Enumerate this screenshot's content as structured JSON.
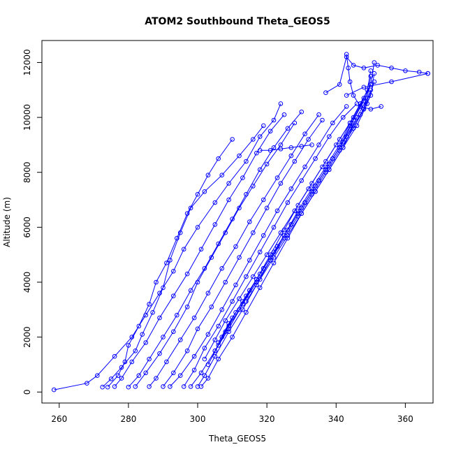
{
  "chart_data": {
    "type": "line",
    "title": "ATOM2 Southbound Theta_GEOS5",
    "xlabel": "Theta_GEOS5",
    "ylabel": "Altitude (m)",
    "xlim": [
      255,
      368
    ],
    "ylim": [
      -400,
      12800
    ],
    "xticks": [
      260,
      280,
      300,
      320,
      340,
      360
    ],
    "yticks": [
      0,
      2000,
      4000,
      6000,
      8000,
      10000,
      12000
    ],
    "grid": false,
    "line_color": "#0000ff",
    "marker": "open-circle",
    "series": [
      {
        "points": [
          [
            258.5,
            80
          ],
          [
            268,
            320
          ],
          [
            271,
            600
          ],
          [
            276,
            1300
          ],
          [
            281,
            2000
          ],
          [
            285,
            2800
          ],
          [
            289,
            3600
          ],
          [
            293,
            4400
          ],
          [
            296,
            5200
          ],
          [
            300,
            6000
          ],
          [
            305,
            6900
          ],
          [
            309,
            7600
          ],
          [
            314,
            8400
          ],
          [
            318,
            9300
          ],
          [
            322,
            9900
          ],
          [
            324,
            10500
          ]
        ]
      },
      {
        "points": [
          [
            272.5,
            180
          ],
          [
            275,
            480
          ],
          [
            278,
            900
          ],
          [
            282,
            1500
          ],
          [
            284,
            2100
          ],
          [
            287,
            2900
          ],
          [
            290,
            3800
          ],
          [
            292,
            4800
          ],
          [
            295,
            5800
          ],
          [
            298,
            6700
          ],
          [
            302,
            7300
          ],
          [
            307,
            7900
          ],
          [
            312,
            8600
          ],
          [
            316,
            9200
          ],
          [
            319,
            9700
          ]
        ]
      },
      {
        "points": [
          [
            274,
            180
          ],
          [
            277,
            600
          ],
          [
            279,
            1100
          ],
          [
            280,
            1700
          ],
          [
            283,
            2400
          ],
          [
            286,
            3200
          ],
          [
            288,
            4000
          ],
          [
            291,
            4700
          ],
          [
            294,
            5600
          ],
          [
            297,
            6500
          ],
          [
            300,
            7200
          ],
          [
            303,
            7900
          ],
          [
            306,
            8500
          ],
          [
            310,
            9200
          ]
        ]
      },
      {
        "points": [
          [
            276,
            200
          ],
          [
            278,
            500
          ],
          [
            281,
            1100
          ],
          [
            285,
            1800
          ],
          [
            289,
            2700
          ],
          [
            293,
            3500
          ],
          [
            297,
            4300
          ],
          [
            301,
            5200
          ],
          [
            305,
            6100
          ],
          [
            309,
            7000
          ],
          [
            313,
            7800
          ],
          [
            317,
            8700
          ],
          [
            321,
            9500
          ],
          [
            325,
            10100
          ]
        ]
      },
      {
        "points": [
          [
            280,
            180
          ],
          [
            283,
            600
          ],
          [
            286,
            1200
          ],
          [
            290,
            2000
          ],
          [
            294,
            2800
          ],
          [
            298,
            3700
          ],
          [
            302,
            4500
          ],
          [
            306,
            5400
          ],
          [
            310,
            6300
          ],
          [
            314,
            7200
          ],
          [
            318,
            8100
          ],
          [
            322,
            8900
          ],
          [
            326,
            9600
          ],
          [
            330,
            10200
          ]
        ]
      },
      {
        "points": [
          [
            282,
            200
          ],
          [
            285,
            700
          ],
          [
            289,
            1400
          ],
          [
            293,
            2200
          ],
          [
            297,
            3100
          ],
          [
            300,
            4000
          ],
          [
            304,
            4900
          ],
          [
            308,
            5800
          ],
          [
            312,
            6700
          ],
          [
            316,
            7500
          ],
          [
            320,
            8300
          ],
          [
            324,
            9000
          ],
          [
            328,
            9800
          ]
        ]
      },
      {
        "points": [
          [
            286,
            200
          ],
          [
            288,
            500
          ],
          [
            291,
            1100
          ],
          [
            295,
            1900
          ],
          [
            299,
            2700
          ],
          [
            303,
            3600
          ],
          [
            307,
            4500
          ],
          [
            311,
            5300
          ],
          [
            315,
            6200
          ],
          [
            319,
            7000
          ],
          [
            323,
            7800
          ],
          [
            327,
            8600
          ],
          [
            331,
            9400
          ],
          [
            335,
            10100
          ]
        ]
      },
      {
        "points": [
          [
            290,
            200
          ],
          [
            293,
            700
          ],
          [
            297,
            1500
          ],
          [
            300,
            2300
          ],
          [
            304,
            3100
          ],
          [
            308,
            4000
          ],
          [
            312,
            4900
          ],
          [
            316,
            5800
          ],
          [
            320,
            6700
          ],
          [
            324,
            7600
          ],
          [
            328,
            8400
          ],
          [
            332,
            9200
          ],
          [
            336,
            9900
          ]
        ]
      },
      {
        "points": [
          [
            292,
            200
          ],
          [
            295,
            600
          ],
          [
            299,
            1300
          ],
          [
            303,
            2100
          ],
          [
            307,
            3000
          ],
          [
            311,
            3900
          ],
          [
            315,
            4800
          ],
          [
            319,
            5700
          ],
          [
            323,
            6600
          ],
          [
            327,
            7400
          ],
          [
            331,
            8200
          ],
          [
            335,
            9000
          ],
          [
            339,
            9800
          ],
          [
            343,
            10400
          ]
        ]
      },
      {
        "points": [
          [
            296,
            200
          ],
          [
            299,
            800
          ],
          [
            302,
            1600
          ],
          [
            306,
            2400
          ],
          [
            310,
            3300
          ],
          [
            314,
            4200
          ],
          [
            318,
            5100
          ],
          [
            322,
            6000
          ],
          [
            326,
            6900
          ],
          [
            330,
            7700
          ],
          [
            334,
            8500
          ],
          [
            338,
            9300
          ],
          [
            342,
            10000
          ],
          [
            346,
            10500
          ]
        ]
      },
      {
        "points": [
          [
            298,
            200
          ],
          [
            301,
            700
          ],
          [
            305,
            1500
          ],
          [
            309,
            2300
          ],
          [
            313,
            3200
          ],
          [
            317,
            4100
          ],
          [
            321,
            5000
          ],
          [
            325,
            5900
          ],
          [
            329,
            6800
          ],
          [
            333,
            7600
          ],
          [
            337,
            8400
          ],
          [
            341,
            9200
          ],
          [
            345,
            10000
          ],
          [
            348,
            10700
          ]
        ]
      },
      {
        "points": [
          [
            300,
            200
          ],
          [
            302,
            600
          ],
          [
            305,
            1300
          ],
          [
            309,
            2200
          ],
          [
            313,
            3000
          ],
          [
            317,
            3900
          ],
          [
            321,
            4800
          ],
          [
            325,
            5700
          ],
          [
            329,
            6600
          ],
          [
            333,
            7400
          ],
          [
            337,
            8200
          ],
          [
            341,
            9000
          ],
          [
            344,
            9800
          ],
          [
            347,
            10500
          ]
        ]
      },
      {
        "points": [
          [
            301,
            200
          ],
          [
            303,
            500
          ],
          [
            306,
            1200
          ],
          [
            310,
            2000
          ],
          [
            314,
            2900
          ],
          [
            318,
            3800
          ],
          [
            322,
            4700
          ],
          [
            326,
            5600
          ],
          [
            330,
            6500
          ],
          [
            334,
            7300
          ],
          [
            338,
            8100
          ],
          [
            342,
            8900
          ],
          [
            345,
            9700
          ],
          [
            348,
            10300
          ],
          [
            350,
            11000
          ]
        ]
      },
      {
        "points": [
          [
            302,
            1200
          ],
          [
            305,
            1900
          ],
          [
            308,
            2600
          ],
          [
            312,
            3400
          ],
          [
            316,
            4200
          ],
          [
            320,
            5000
          ],
          [
            324,
            5800
          ],
          [
            328,
            6600
          ],
          [
            332,
            7400
          ],
          [
            336,
            8200
          ],
          [
            340,
            9000
          ],
          [
            344,
            9800
          ],
          [
            347,
            10500
          ],
          [
            350,
            11200
          ],
          [
            351,
            12000
          ]
        ]
      },
      {
        "points": [
          [
            303,
            1000
          ],
          [
            306,
            1700
          ],
          [
            309,
            2400
          ],
          [
            313,
            3200
          ],
          [
            317,
            4000
          ],
          [
            321,
            4800
          ],
          [
            325,
            5600
          ],
          [
            329,
            6400
          ],
          [
            333,
            7200
          ],
          [
            337,
            8000
          ],
          [
            341,
            8800
          ],
          [
            345,
            9600
          ],
          [
            348,
            10300
          ],
          [
            350,
            11700
          ]
        ]
      },
      {
        "points": [
          [
            305,
            1500
          ],
          [
            308,
            2200
          ],
          [
            311,
            2900
          ],
          [
            315,
            3700
          ],
          [
            319,
            4500
          ],
          [
            323,
            5300
          ],
          [
            327,
            6100
          ],
          [
            331,
            6900
          ],
          [
            335,
            7700
          ],
          [
            339,
            8500
          ],
          [
            343,
            9300
          ],
          [
            346,
            10000
          ],
          [
            349,
            10700
          ],
          [
            350,
            11500
          ]
        ]
      },
      {
        "points": [
          [
            306,
            1800
          ],
          [
            309,
            2500
          ],
          [
            313,
            3300
          ],
          [
            317,
            4100
          ],
          [
            321,
            4900
          ],
          [
            325,
            5700
          ],
          [
            329,
            6500
          ],
          [
            333,
            7300
          ],
          [
            337,
            8100
          ],
          [
            341,
            8900
          ],
          [
            344,
            9700
          ],
          [
            347,
            10400
          ],
          [
            349,
            11000
          ]
        ]
      },
      {
        "points": [
          [
            307,
            2000
          ],
          [
            310,
            2700
          ],
          [
            314,
            3500
          ],
          [
            318,
            4300
          ],
          [
            322,
            5100
          ],
          [
            326,
            5900
          ],
          [
            330,
            6700
          ],
          [
            334,
            7500
          ],
          [
            338,
            8300
          ],
          [
            342,
            9100
          ],
          [
            345,
            9900
          ],
          [
            348,
            10600
          ],
          [
            350,
            11200
          ]
        ]
      },
      {
        "points": [
          [
            312,
            3000
          ],
          [
            315,
            3700
          ],
          [
            319,
            4500
          ],
          [
            323,
            5300
          ],
          [
            327,
            6100
          ],
          [
            331,
            6900
          ],
          [
            335,
            7700
          ],
          [
            339,
            8500
          ],
          [
            343,
            9300
          ],
          [
            347,
            10100
          ],
          [
            350,
            10800
          ],
          [
            351,
            11600
          ]
        ]
      },
      {
        "points": [
          [
            314,
            3300
          ],
          [
            318,
            4100
          ],
          [
            322,
            4900
          ],
          [
            326,
            5700
          ],
          [
            330,
            6500
          ],
          [
            334,
            7300
          ],
          [
            338,
            8100
          ],
          [
            342,
            8900
          ],
          [
            346,
            9700
          ],
          [
            349,
            10500
          ],
          [
            351,
            11300
          ]
        ]
      },
      {
        "points": [
          [
            337,
            10900
          ],
          [
            341,
            11200
          ],
          [
            343,
            12200
          ],
          [
            345,
            11900
          ],
          [
            348,
            11800
          ],
          [
            352,
            11900
          ],
          [
            356,
            11800
          ],
          [
            360,
            11700
          ],
          [
            364,
            11650
          ],
          [
            366.5,
            11600
          ]
        ]
      },
      {
        "points": [
          [
            343,
            12300
          ],
          [
            343.5,
            11800
          ],
          [
            344,
            11300
          ],
          [
            345,
            10800
          ],
          [
            347,
            10400
          ],
          [
            350,
            10300
          ],
          [
            353,
            10400
          ]
        ]
      },
      {
        "points": [
          [
            318,
            8800
          ],
          [
            321,
            8800
          ],
          [
            324,
            8850
          ],
          [
            327,
            8900
          ],
          [
            330,
            8950
          ],
          [
            333,
            9000
          ]
        ]
      },
      {
        "points": [
          [
            366.5,
            11600
          ],
          [
            356,
            11300
          ],
          [
            348,
            11100
          ],
          [
            343,
            10800
          ]
        ]
      }
    ]
  }
}
